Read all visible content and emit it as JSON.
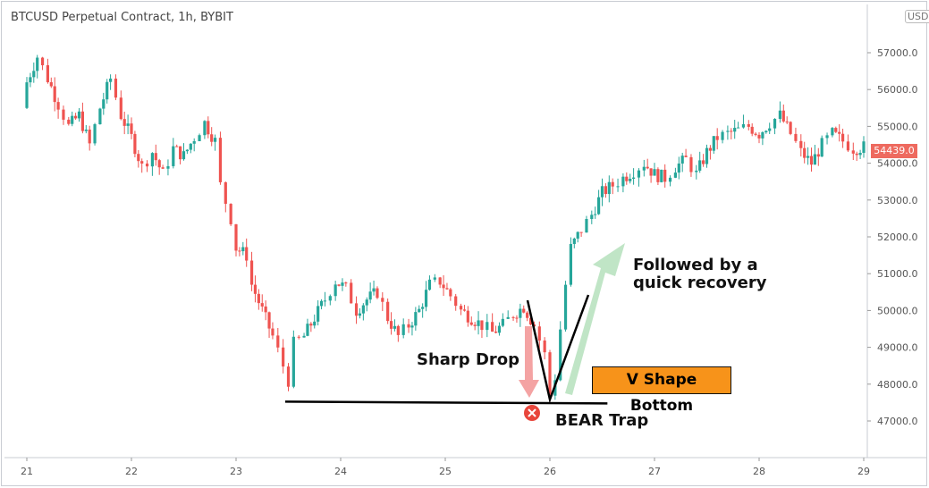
{
  "header": {
    "title": "BTCUSD Perpetual Contract, 1h, BYBIT",
    "currency_button": "USD",
    "current_price_label": "54439.0"
  },
  "annotations": {
    "sharp_drop": "Sharp Drop",
    "recovery_line1": "Followed by a",
    "recovery_line2": "quick recovery",
    "v_shape": "V Shape Bottom",
    "bear_trap": "BEAR Trap"
  },
  "colors": {
    "up": "#26a69a",
    "down": "#ef5350",
    "current_price_bg": "#ee6a5f",
    "drop_arrow": "#f4a3a3",
    "recovery_arrow": "#b9e2c0",
    "v_box": "#f7931a",
    "trap_icon": "#e8463c"
  },
  "chart_data": {
    "type": "candlestick",
    "title": "BTCUSD Perpetual Contract, 1h, BYBIT",
    "y_ticks": [
      "47000.0",
      "48000.0",
      "49000.0",
      "50000.0",
      "51000.0",
      "52000.0",
      "53000.0",
      "54000.0",
      "55000.0",
      "56000.0",
      "57000.0"
    ],
    "x_ticks": [
      "21",
      "22",
      "23",
      "24",
      "25",
      "26",
      "27",
      "28",
      "29"
    ],
    "ylim": [
      46200,
      58300
    ],
    "current_price": 54439.0,
    "support_level": 47500,
    "path_points": [
      [
        20.95,
        55500
      ],
      [
        21.0,
        56200
      ],
      [
        21.1,
        56900
      ],
      [
        21.2,
        56300
      ],
      [
        21.3,
        55600
      ],
      [
        21.4,
        55000
      ],
      [
        21.5,
        55300
      ],
      [
        21.6,
        54500
      ],
      [
        21.7,
        55500
      ],
      [
        21.8,
        56300
      ],
      [
        21.9,
        55300
      ],
      [
        22.0,
        54700
      ],
      [
        22.1,
        53900
      ],
      [
        22.2,
        54300
      ],
      [
        22.3,
        53700
      ],
      [
        22.4,
        54400
      ],
      [
        22.5,
        54200
      ],
      [
        22.6,
        54700
      ],
      [
        22.7,
        55100
      ],
      [
        22.8,
        54600
      ],
      [
        22.85,
        53400
      ],
      [
        22.95,
        52500
      ],
      [
        23.0,
        51700
      ],
      [
        23.1,
        51500
      ],
      [
        23.15,
        50700
      ],
      [
        23.25,
        50000
      ],
      [
        23.35,
        49300
      ],
      [
        23.45,
        48500
      ],
      [
        23.5,
        48100
      ],
      [
        23.55,
        49100
      ],
      [
        23.65,
        49300
      ],
      [
        23.75,
        49800
      ],
      [
        23.85,
        50300
      ],
      [
        23.95,
        50800
      ],
      [
        24.05,
        50600
      ],
      [
        24.15,
        50000
      ],
      [
        24.25,
        50300
      ],
      [
        24.35,
        50500
      ],
      [
        24.45,
        49800
      ],
      [
        24.55,
        49300
      ],
      [
        24.65,
        49600
      ],
      [
        24.75,
        50000
      ],
      [
        24.85,
        50700
      ],
      [
        24.95,
        50800
      ],
      [
        25.05,
        50400
      ],
      [
        25.15,
        50000
      ],
      [
        25.25,
        49800
      ],
      [
        25.35,
        49600
      ],
      [
        25.45,
        49400
      ],
      [
        25.55,
        49600
      ],
      [
        25.65,
        49900
      ],
      [
        25.75,
        50100
      ],
      [
        25.85,
        49600
      ],
      [
        25.95,
        48800
      ],
      [
        26.0,
        47700
      ],
      [
        26.05,
        48200
      ],
      [
        26.1,
        49500
      ],
      [
        26.15,
        50700
      ],
      [
        26.2,
        51700
      ],
      [
        26.3,
        52200
      ],
      [
        26.4,
        52600
      ],
      [
        26.5,
        53200
      ],
      [
        26.6,
        53400
      ],
      [
        26.7,
        53600
      ],
      [
        26.8,
        53800
      ],
      [
        26.9,
        54000
      ],
      [
        27.0,
        53700
      ],
      [
        27.1,
        53600
      ],
      [
        27.2,
        53900
      ],
      [
        27.3,
        54100
      ],
      [
        27.4,
        53700
      ],
      [
        27.5,
        54300
      ],
      [
        27.6,
        54700
      ],
      [
        27.7,
        54800
      ],
      [
        27.8,
        54900
      ],
      [
        27.9,
        55000
      ],
      [
        28.0,
        54800
      ],
      [
        28.1,
        55100
      ],
      [
        28.2,
        55300
      ],
      [
        28.3,
        54800
      ],
      [
        28.4,
        54300
      ],
      [
        28.5,
        54000
      ],
      [
        28.6,
        54500
      ],
      [
        28.7,
        54800
      ],
      [
        28.8,
        54600
      ],
      [
        28.9,
        54400
      ],
      [
        29.0,
        54439
      ]
    ],
    "annotations": [
      "Sharp Drop",
      "Followed by a quick recovery",
      "V Shape Bottom",
      "BEAR Trap"
    ]
  }
}
